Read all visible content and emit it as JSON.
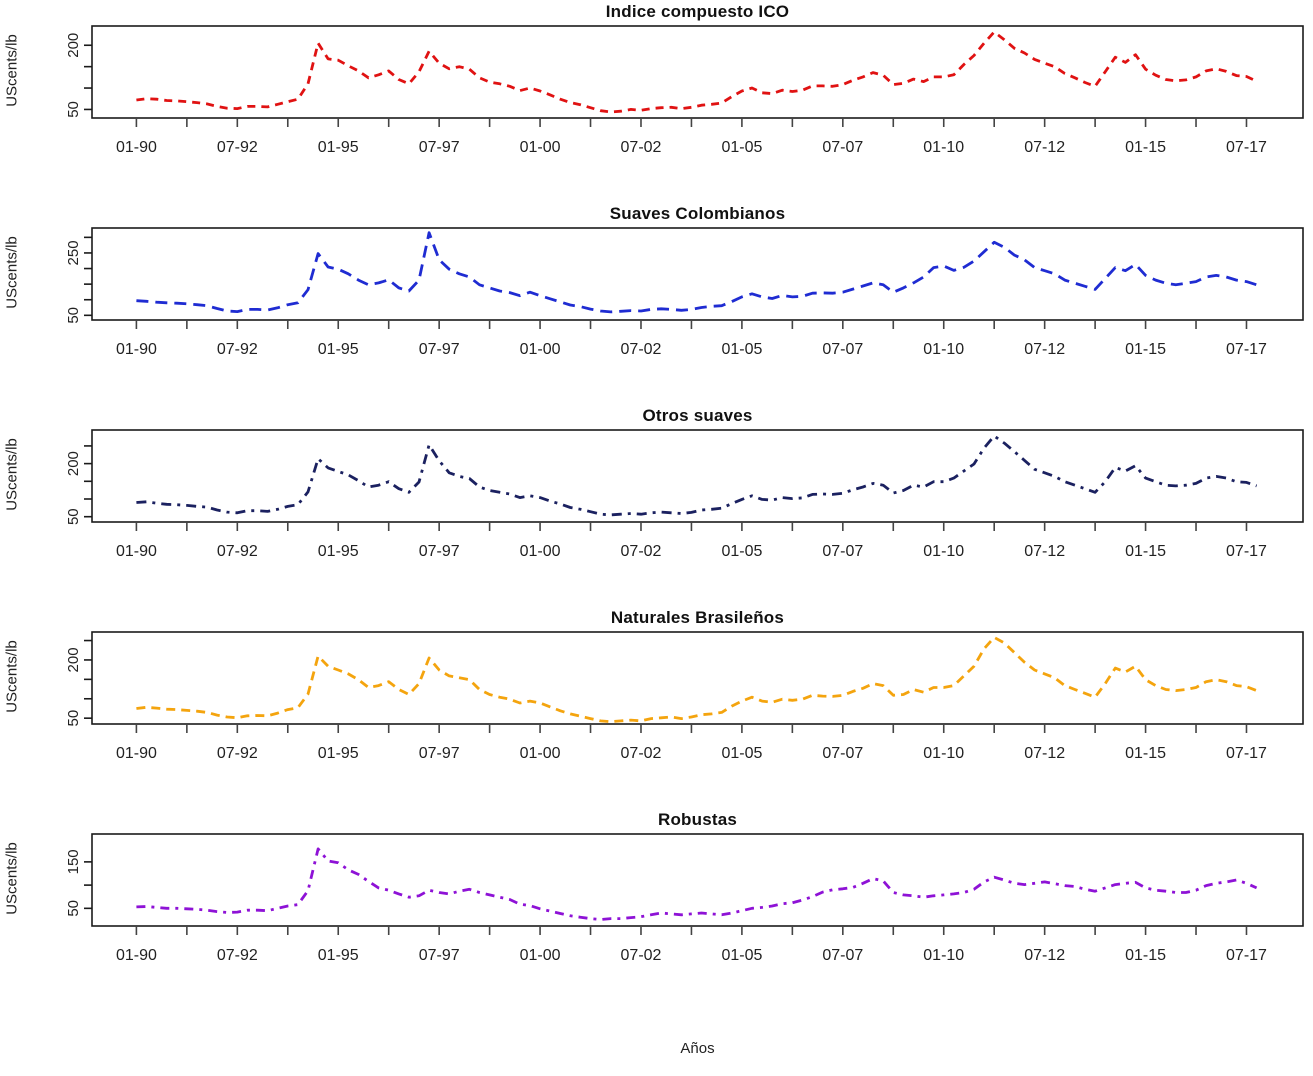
{
  "figure": {
    "xaxis_title": "Años",
    "background": "#ffffff",
    "frame_color": "#1a1a1a",
    "text_color": "#222222"
  },
  "axis": {
    "xlim": [
      1988.9,
      2018.9
    ],
    "xtick_start_year": 1990,
    "xtick_step_years": 1.25,
    "xtick_count": 23,
    "xtick_labels": [
      "01-90",
      "07-92",
      "01-95",
      "07-97",
      "01-00",
      "07-02",
      "01-05",
      "07-07",
      "01-10",
      "07-12",
      "01-15",
      "07-17"
    ],
    "grid": "off",
    "legend": "none"
  },
  "chart_data": [
    {
      "type": "line",
      "title": "Indice compuesto ICO",
      "ylabel": "UScents/lb",
      "xlabel": "Años",
      "series_name": "Indice compuesto ICO",
      "color": "#e01212",
      "line_style": "dashed",
      "dash": "8 6",
      "x_start": 1990.0,
      "x_step": 0.25,
      "ylim": [
        30,
        245
      ],
      "yticks": [
        50,
        100,
        150,
        200
      ],
      "ytick_labels_shown": [
        50,
        200
      ],
      "values": [
        72,
        75,
        74,
        71,
        70,
        68,
        66,
        63,
        57,
        53,
        52,
        57,
        57,
        56,
        62,
        68,
        74,
        110,
        205,
        168,
        165,
        152,
        140,
        124,
        131,
        140,
        120,
        110,
        138,
        186,
        158,
        145,
        150,
        144,
        124,
        114,
        110,
        104,
        94,
        100,
        93,
        84,
        74,
        66,
        61,
        54,
        47,
        44,
        46,
        50,
        48,
        52,
        54,
        55,
        52,
        55,
        60,
        62,
        65,
        80,
        93,
        100,
        89,
        87,
        95,
        92,
        95,
        105,
        105,
        104,
        108,
        118,
        126,
        136,
        130,
        108,
        111,
        121,
        115,
        126,
        126,
        131,
        155,
        176,
        205,
        231,
        213,
        193,
        182,
        167,
        158,
        150,
        134,
        124,
        113,
        104,
        138,
        172,
        160,
        178,
        144,
        130,
        120,
        117,
        119,
        126,
        140,
        145,
        139,
        129,
        127,
        116
      ]
    },
    {
      "type": "line",
      "title": "Suaves Colombianos",
      "ylabel": "UScents/lb",
      "xlabel": "",
      "series_name": "Suaves Colombianos",
      "color": "#1f2cd2",
      "line_style": "dashed",
      "dash": "12 7",
      "x_start": 1990.0,
      "x_step": 0.25,
      "ylim": [
        35,
        330
      ],
      "yticks": [
        50,
        100,
        150,
        200,
        250,
        300
      ],
      "ytick_labels_shown": [
        50,
        250
      ],
      "values": [
        97,
        95,
        92,
        90,
        89,
        87,
        84,
        81,
        72,
        64,
        62,
        69,
        69,
        67,
        74,
        84,
        90,
        132,
        248,
        205,
        198,
        183,
        163,
        148,
        154,
        164,
        138,
        128,
        163,
        315,
        228,
        198,
        183,
        173,
        148,
        138,
        128,
        123,
        113,
        124,
        113,
        103,
        93,
        83,
        78,
        70,
        64,
        61,
        63,
        65,
        64,
        69,
        71,
        69,
        66,
        69,
        75,
        79,
        81,
        94,
        109,
        119,
        109,
        104,
        114,
        109,
        111,
        121,
        122,
        121,
        124,
        134,
        144,
        154,
        148,
        124,
        138,
        154,
        173,
        203,
        208,
        194,
        204,
        224,
        254,
        284,
        268,
        243,
        228,
        203,
        193,
        183,
        163,
        153,
        143,
        133,
        168,
        203,
        193,
        213,
        178,
        163,
        153,
        148,
        153,
        158,
        173,
        178,
        173,
        163,
        158,
        148
      ]
    },
    {
      "type": "line",
      "title": "Otros suaves",
      "ylabel": "UScents/lb",
      "xlabel": "",
      "series_name": "Otros suaves",
      "color": "#1b2160",
      "line_style": "dash-dot",
      "dash": "10 6 3 6",
      "x_start": 1990.0,
      "x_step": 0.25,
      "ylim": [
        35,
        295
      ],
      "yticks": [
        50,
        100,
        150,
        200,
        250
      ],
      "ytick_labels_shown": [
        50,
        200
      ],
      "values": [
        90,
        92,
        88,
        85,
        84,
        82,
        79,
        77,
        69,
        63,
        61,
        67,
        67,
        65,
        71,
        79,
        84,
        120,
        214,
        188,
        178,
        168,
        152,
        134,
        139,
        149,
        129,
        119,
        148,
        253,
        208,
        174,
        164,
        158,
        134,
        124,
        119,
        114,
        104,
        109,
        104,
        94,
        86,
        76,
        71,
        64,
        57,
        55,
        57,
        59,
        57,
        61,
        63,
        61,
        59,
        62,
        69,
        71,
        74,
        87,
        99,
        109,
        99,
        97,
        104,
        101,
        103,
        113,
        114,
        113,
        116,
        126,
        134,
        144,
        139,
        117,
        124,
        139,
        134,
        149,
        149,
        159,
        179,
        199,
        244,
        278,
        258,
        234,
        209,
        184,
        174,
        164,
        149,
        139,
        129,
        119,
        149,
        189,
        179,
        194,
        159,
        149,
        139,
        137,
        139,
        144,
        159,
        164,
        159,
        149,
        147,
        137
      ]
    },
    {
      "type": "line",
      "title": "Naturales Brasileños",
      "ylabel": "UScents/lb",
      "xlabel": "",
      "series_name": "Naturales Brasileños",
      "color": "#f4a40e",
      "line_style": "dashed",
      "dash": "9 6",
      "x_start": 1990.0,
      "x_step": 0.25,
      "ylim": [
        35,
        272
      ],
      "yticks": [
        50,
        100,
        150,
        200,
        250
      ],
      "ytick_labels_shown": [
        50,
        200
      ],
      "values": [
        75,
        78,
        76,
        73,
        72,
        70,
        68,
        65,
        58,
        53,
        51,
        56,
        57,
        56,
        63,
        72,
        77,
        112,
        210,
        184,
        174,
        164,
        149,
        129,
        134,
        144,
        124,
        111,
        139,
        205,
        174,
        159,
        154,
        149,
        124,
        111,
        104,
        99,
        89,
        94,
        89,
        79,
        69,
        61,
        55,
        49,
        43,
        41,
        43,
        45,
        43,
        49,
        51,
        53,
        49,
        53,
        59,
        61,
        65,
        81,
        94,
        104,
        94,
        91,
        99,
        96,
        99,
        109,
        107,
        106,
        109,
        119,
        127,
        139,
        134,
        109,
        111,
        124,
        117,
        129,
        129,
        134,
        159,
        184,
        229,
        258,
        244,
        219,
        194,
        174,
        164,
        154,
        134,
        124,
        114,
        104,
        139,
        179,
        169,
        184,
        149,
        134,
        124,
        121,
        124,
        129,
        144,
        149,
        144,
        134,
        131,
        121
      ]
    },
    {
      "type": "line",
      "title": "Robustas",
      "ylabel": "UScents/lb",
      "xlabel": "",
      "series_name": "Robustas",
      "color": "#8e12d6",
      "line_style": "dash-dot",
      "dash": "9 6 3 6",
      "x_start": 1990.0,
      "x_step": 0.25,
      "ylim": [
        12,
        210
      ],
      "yticks": [
        50,
        100,
        150
      ],
      "ytick_labels_shown": [
        50,
        150
      ],
      "values": [
        53,
        54,
        52,
        50,
        50,
        49,
        48,
        46,
        43,
        41,
        42,
        46,
        46,
        45,
        50,
        55,
        58,
        88,
        178,
        152,
        148,
        133,
        123,
        108,
        94,
        89,
        81,
        74,
        77,
        89,
        84,
        81,
        87,
        91,
        84,
        79,
        74,
        69,
        59,
        56,
        49,
        44,
        39,
        34,
        31,
        28,
        26,
        28,
        28,
        30,
        32,
        36,
        40,
        38,
        36,
        38,
        40,
        38,
        36,
        40,
        45,
        50,
        52,
        55,
        60,
        62,
        68,
        75,
        85,
        90,
        92,
        95,
        104,
        114,
        109,
        84,
        79,
        77,
        74,
        77,
        79,
        81,
        84,
        91,
        107,
        117,
        111,
        104,
        101,
        104,
        107,
        103,
        99,
        97,
        91,
        87,
        94,
        101,
        104,
        106,
        94,
        89,
        87,
        84,
        84,
        89,
        99,
        104,
        107,
        111,
        104,
        94
      ]
    }
  ]
}
